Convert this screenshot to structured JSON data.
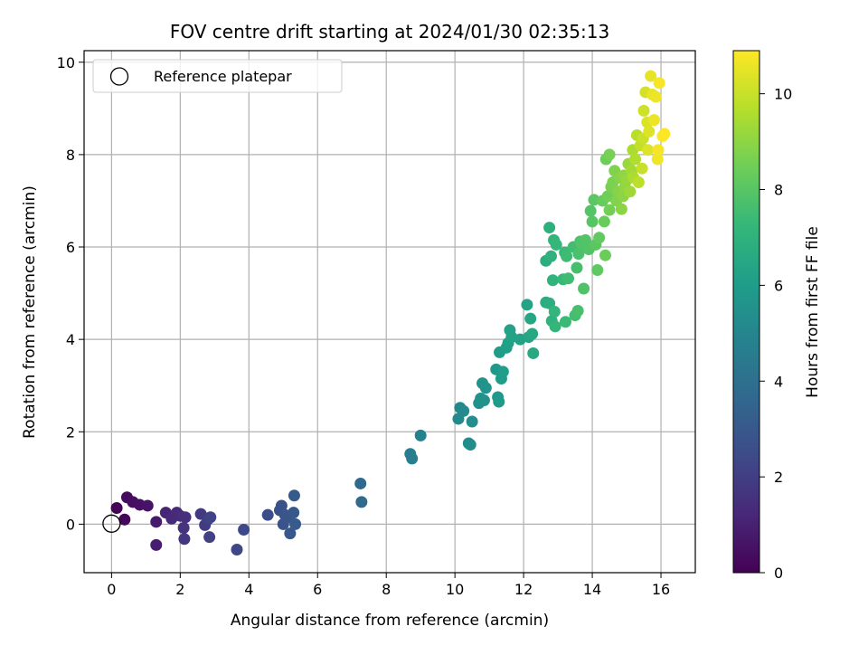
{
  "chart_data": {
    "type": "scatter",
    "title": "FOV centre drift starting at 2024/01/30 02:35:13",
    "xlabel": "Angular distance from reference (arcmin)",
    "ylabel": "Rotation from reference (arcmin)",
    "xlim": [
      -0.8,
      17.0
    ],
    "ylim": [
      -1.05,
      10.25
    ],
    "xticks": [
      0,
      2,
      4,
      6,
      8,
      10,
      12,
      14,
      16
    ],
    "yticks": [
      0,
      2,
      4,
      6,
      8,
      10
    ],
    "grid": true,
    "legend": {
      "placement": "top-left",
      "entries": [
        "Reference platepar"
      ]
    },
    "reference_point": {
      "x": 0,
      "y": 0,
      "marker": "hollow-circle"
    },
    "colorbar": {
      "label": "Hours from first FF file",
      "range": [
        0,
        10.9
      ],
      "ticks": [
        0,
        2,
        4,
        6,
        8,
        10
      ],
      "colormap": "viridis",
      "colormap_stops": [
        "#440154",
        "#482878",
        "#3e4a89",
        "#31688e",
        "#26828e",
        "#1f9e89",
        "#35b779",
        "#6ece58",
        "#b5de2b",
        "#fde725"
      ]
    },
    "points": [
      [
        0.15,
        0.35,
        0.1
      ],
      [
        0.38,
        0.1,
        0.2
      ],
      [
        0.45,
        0.58,
        0.3
      ],
      [
        0.62,
        0.48,
        0.4
      ],
      [
        0.82,
        0.42,
        0.5
      ],
      [
        1.05,
        0.4,
        0.6
      ],
      [
        1.3,
        0.05,
        0.8
      ],
      [
        1.3,
        -0.45,
        0.9
      ],
      [
        1.58,
        0.25,
        1.1
      ],
      [
        1.75,
        0.12,
        1.2
      ],
      [
        1.9,
        0.25,
        1.3
      ],
      [
        2.0,
        0.18,
        1.4
      ],
      [
        2.15,
        0.15,
        1.5
      ],
      [
        2.1,
        -0.08,
        1.6
      ],
      [
        2.12,
        -0.32,
        1.7
      ],
      [
        2.6,
        0.22,
        1.8
      ],
      [
        2.72,
        -0.02,
        1.9
      ],
      [
        2.8,
        0.1,
        2.0
      ],
      [
        2.85,
        -0.28,
        2.1
      ],
      [
        2.88,
        0.15,
        2.2
      ],
      [
        3.65,
        -0.55,
        2.3
      ],
      [
        3.85,
        -0.12,
        2.4
      ],
      [
        4.55,
        0.2,
        2.6
      ],
      [
        4.9,
        0.3,
        2.7
      ],
      [
        4.95,
        0.4,
        2.75
      ],
      [
        5.0,
        0.0,
        2.8
      ],
      [
        5.05,
        0.2,
        2.85
      ],
      [
        5.15,
        0.15,
        2.9
      ],
      [
        5.2,
        -0.2,
        2.95
      ],
      [
        5.3,
        0.25,
        3.0
      ],
      [
        5.32,
        0.62,
        3.05
      ],
      [
        5.35,
        0.0,
        3.1
      ],
      [
        7.25,
        0.88,
        3.7
      ],
      [
        7.28,
        0.48,
        3.75
      ],
      [
        8.7,
        1.52,
        4.6
      ],
      [
        8.75,
        1.42,
        4.65
      ],
      [
        9.0,
        1.92,
        4.8
      ],
      [
        10.1,
        2.28,
        5.1
      ],
      [
        10.15,
        2.52,
        5.15
      ],
      [
        10.25,
        2.45,
        5.2
      ],
      [
        10.4,
        1.75,
        5.25
      ],
      [
        10.45,
        1.72,
        5.3
      ],
      [
        10.5,
        2.22,
        5.35
      ],
      [
        10.7,
        2.62,
        5.45
      ],
      [
        10.75,
        2.72,
        5.5
      ],
      [
        10.8,
        3.05,
        5.55
      ],
      [
        10.85,
        2.68,
        5.6
      ],
      [
        10.9,
        2.95,
        5.65
      ],
      [
        11.2,
        3.35,
        5.8
      ],
      [
        11.25,
        2.75,
        5.85
      ],
      [
        11.28,
        2.65,
        5.9
      ],
      [
        11.3,
        3.72,
        5.95
      ],
      [
        11.35,
        3.15,
        6.0
      ],
      [
        11.4,
        3.3,
        6.05
      ],
      [
        11.5,
        3.82,
        6.1
      ],
      [
        11.55,
        3.92,
        6.15
      ],
      [
        11.6,
        4.2,
        6.2
      ],
      [
        11.65,
        4.05,
        6.25
      ],
      [
        11.9,
        4.0,
        6.3
      ],
      [
        12.1,
        4.75,
        6.35
      ],
      [
        12.15,
        4.05,
        6.4
      ],
      [
        12.2,
        4.45,
        6.45
      ],
      [
        12.25,
        4.12,
        6.5
      ],
      [
        12.28,
        3.7,
        6.55
      ],
      [
        12.65,
        4.8,
        6.75
      ],
      [
        12.65,
        5.7,
        6.8
      ],
      [
        12.75,
        4.78,
        6.85
      ],
      [
        12.75,
        6.42,
        6.9
      ],
      [
        12.8,
        5.8,
        6.95
      ],
      [
        12.82,
        4.4,
        7.0
      ],
      [
        12.85,
        5.28,
        7.05
      ],
      [
        12.88,
        6.15,
        7.1
      ],
      [
        12.9,
        4.6,
        7.15
      ],
      [
        12.92,
        4.28,
        7.2
      ],
      [
        12.95,
        6.05,
        7.25
      ],
      [
        13.15,
        5.3,
        7.3
      ],
      [
        13.2,
        5.88,
        7.35
      ],
      [
        13.22,
        4.38,
        7.4
      ],
      [
        13.25,
        5.8,
        7.45
      ],
      [
        13.3,
        5.32,
        7.5
      ],
      [
        13.45,
        6.0,
        7.55
      ],
      [
        13.5,
        4.52,
        7.6
      ],
      [
        13.55,
        5.55,
        7.65
      ],
      [
        13.58,
        4.62,
        7.7
      ],
      [
        13.6,
        5.85,
        7.75
      ],
      [
        13.65,
        6.12,
        7.8
      ],
      [
        13.7,
        6.05,
        7.82
      ],
      [
        13.75,
        5.1,
        7.85
      ],
      [
        13.8,
        6.15,
        7.88
      ],
      [
        13.9,
        5.95,
        7.9
      ],
      [
        13.95,
        6.78,
        7.95
      ],
      [
        14.0,
        6.55,
        8.0
      ],
      [
        14.05,
        7.02,
        8.05
      ],
      [
        14.1,
        6.05,
        8.1
      ],
      [
        14.15,
        5.5,
        8.15
      ],
      [
        14.2,
        6.2,
        8.2
      ],
      [
        14.3,
        7.0,
        8.3
      ],
      [
        14.35,
        6.55,
        8.35
      ],
      [
        14.38,
        5.82,
        8.4
      ],
      [
        14.4,
        7.9,
        8.45
      ],
      [
        14.45,
        7.1,
        8.5
      ],
      [
        14.5,
        6.8,
        8.55
      ],
      [
        14.5,
        8.0,
        8.6
      ],
      [
        14.55,
        7.3,
        8.65
      ],
      [
        14.6,
        7.4,
        8.7
      ],
      [
        14.65,
        7.65,
        8.75
      ],
      [
        14.7,
        7.0,
        8.8
      ],
      [
        14.75,
        7.2,
        8.85
      ],
      [
        14.8,
        7.5,
        8.9
      ],
      [
        14.85,
        6.82,
        8.95
      ],
      [
        14.9,
        7.1,
        9.0
      ],
      [
        14.92,
        7.55,
        9.05
      ],
      [
        14.95,
        7.3,
        9.1
      ],
      [
        15.0,
        7.45,
        9.15
      ],
      [
        15.05,
        7.8,
        9.2
      ],
      [
        15.1,
        7.2,
        9.3
      ],
      [
        15.15,
        7.65,
        9.4
      ],
      [
        15.18,
        8.1,
        9.5
      ],
      [
        15.2,
        7.5,
        9.55
      ],
      [
        15.25,
        7.9,
        9.6
      ],
      [
        15.3,
        8.42,
        9.7
      ],
      [
        15.35,
        7.4,
        9.8
      ],
      [
        15.4,
        8.2,
        9.9
      ],
      [
        15.45,
        7.7,
        10.0
      ],
      [
        15.48,
        8.35,
        10.05
      ],
      [
        15.5,
        8.95,
        10.1
      ],
      [
        15.55,
        9.35,
        10.2
      ],
      [
        15.6,
        8.7,
        10.3
      ],
      [
        15.62,
        8.1,
        10.35
      ],
      [
        15.65,
        8.5,
        10.4
      ],
      [
        15.7,
        9.7,
        10.5
      ],
      [
        15.75,
        9.3,
        10.55
      ],
      [
        15.8,
        8.75,
        10.6
      ],
      [
        15.85,
        9.25,
        10.65
      ],
      [
        15.9,
        7.9,
        10.7
      ],
      [
        15.92,
        8.1,
        10.75
      ],
      [
        15.95,
        9.55,
        10.8
      ],
      [
        16.05,
        8.4,
        10.85
      ],
      [
        16.1,
        8.45,
        10.9
      ]
    ]
  }
}
